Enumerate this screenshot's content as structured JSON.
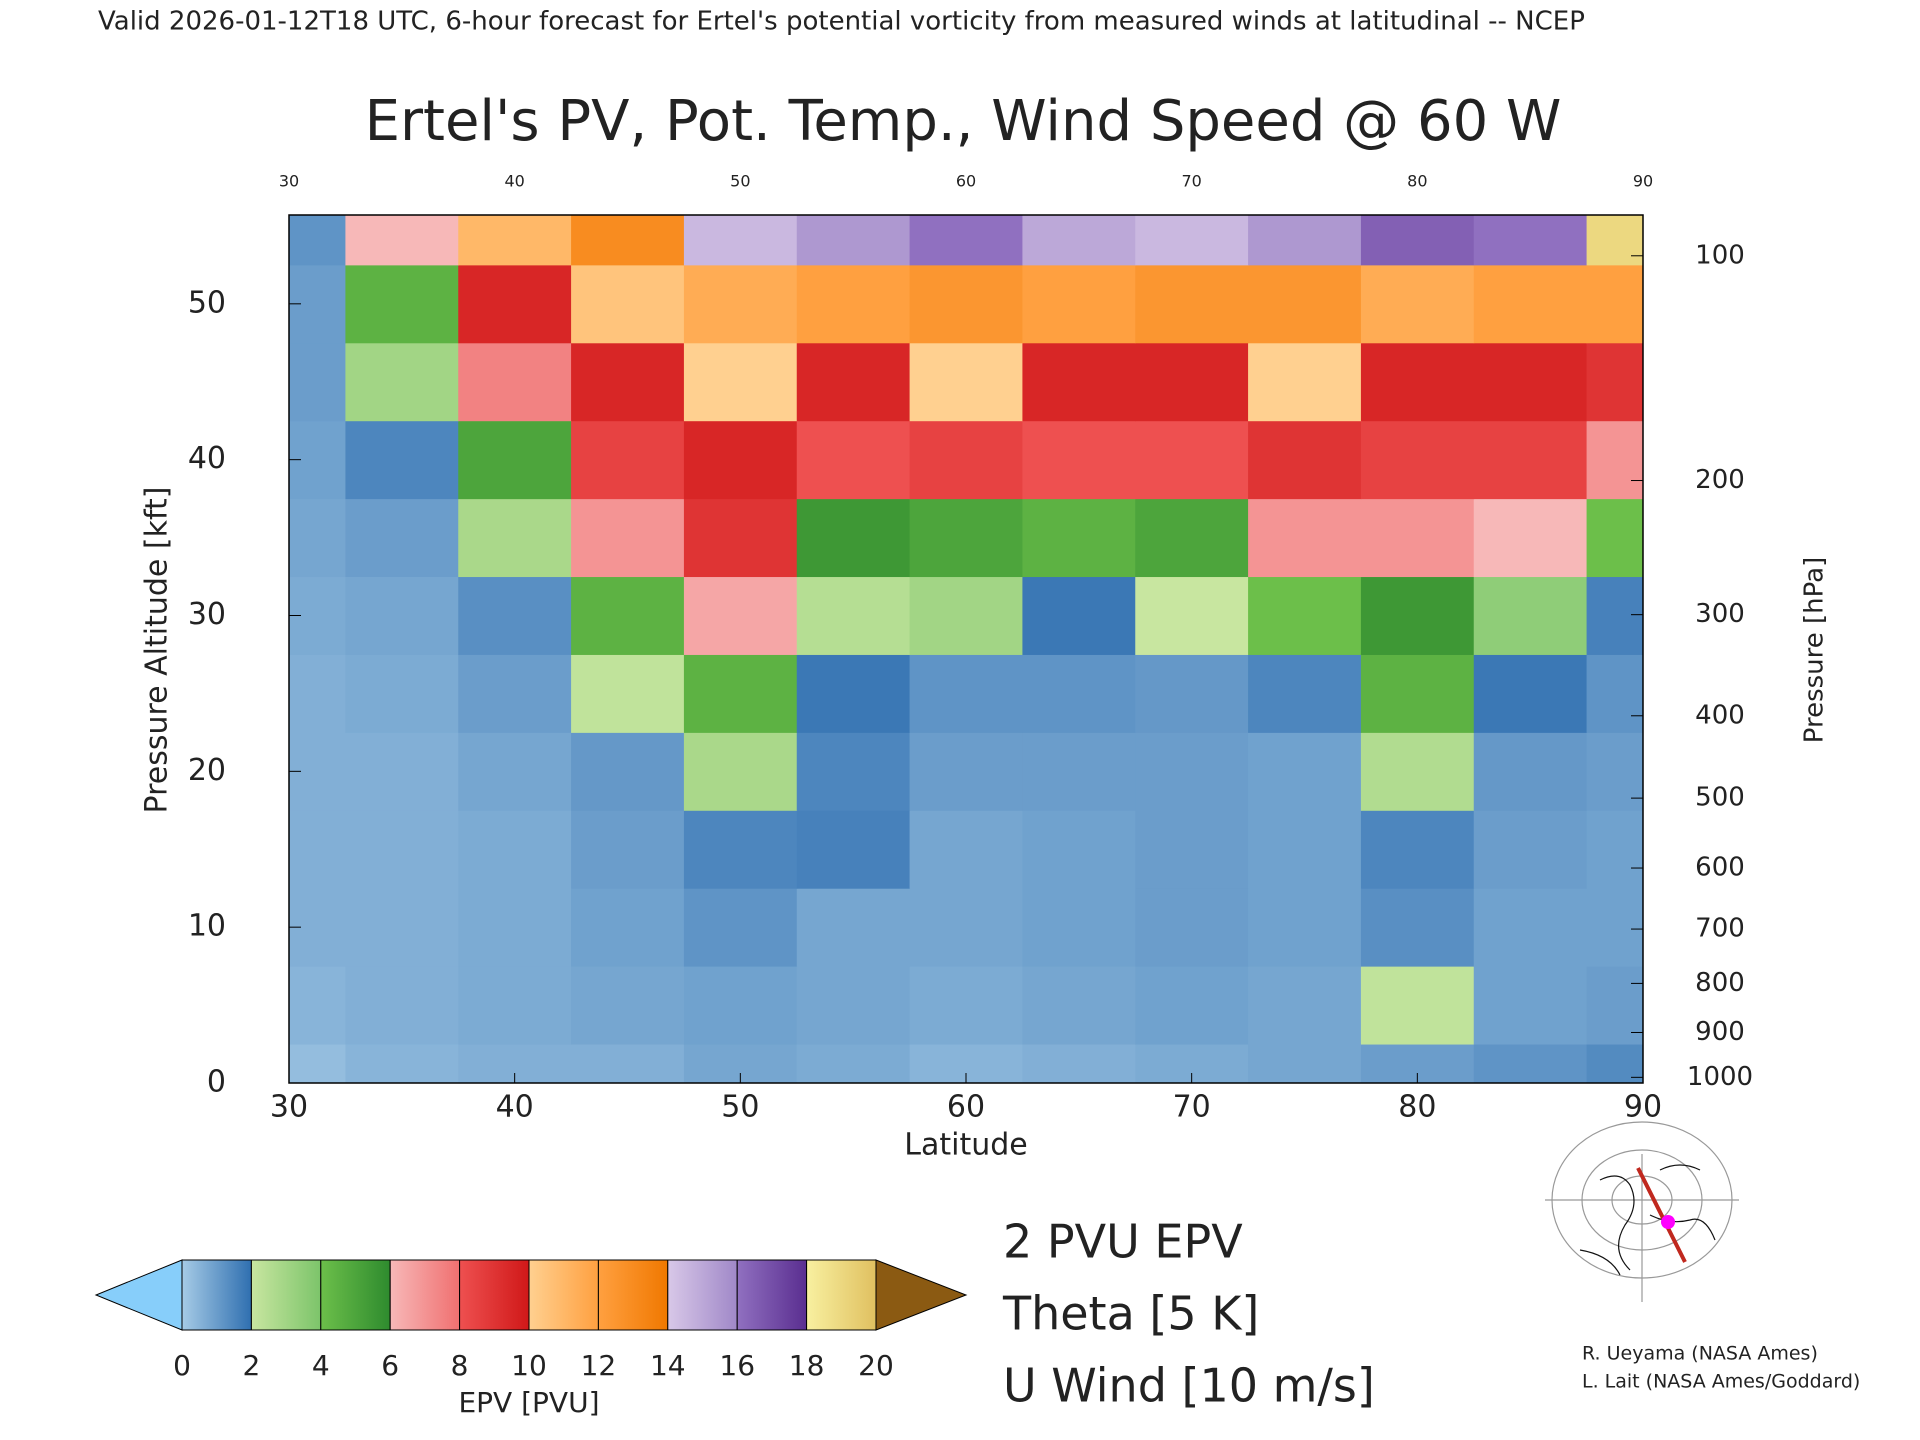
{
  "chart_data": {
    "type": "heatmap",
    "suptitle": "Valid 2026-01-12T18 UTC, 6-hour forecast for Ertel's potential vorticity from measured winds at latitudinal -- NCEP",
    "title": "Ertel's PV, Pot. Temp., Wind Speed @ 60 W",
    "x_label": "Latitude",
    "y_label": "Pressure Altitude [kft]",
    "y2_label": "Pressure [hPa]",
    "x": [
      30,
      35,
      40,
      45,
      50,
      55,
      60,
      65,
      70,
      75,
      80,
      85,
      90
    ],
    "y": [
      0,
      5,
      10,
      15,
      20,
      25,
      30,
      35,
      40,
      45,
      50,
      55
    ],
    "values": [
      [
        0.3,
        0.5,
        0.6,
        0.6,
        0.8,
        0.7,
        0.5,
        0.6,
        0.7,
        0.8,
        1.0,
        1.2,
        1.4
      ],
      [
        0.5,
        0.6,
        0.7,
        0.8,
        0.9,
        0.8,
        0.7,
        0.8,
        0.9,
        0.8,
        2.2,
        0.9,
        1.0
      ],
      [
        0.6,
        0.6,
        0.7,
        0.9,
        1.2,
        0.8,
        0.8,
        0.9,
        1.0,
        0.9,
        1.3,
        0.9,
        0.9
      ],
      [
        0.6,
        0.6,
        0.7,
        1.0,
        1.5,
        1.6,
        0.8,
        0.9,
        1.0,
        0.9,
        1.5,
        1.0,
        0.9
      ],
      [
        0.6,
        0.6,
        0.8,
        1.1,
        2.8,
        1.5,
        1.0,
        1.0,
        1.0,
        0.9,
        2.6,
        1.1,
        1.0
      ],
      [
        0.6,
        0.7,
        1.0,
        2.2,
        4.5,
        1.8,
        1.2,
        1.2,
        1.1,
        1.5,
        4.5,
        1.8,
        1.2
      ],
      [
        0.7,
        0.8,
        1.3,
        4.5,
        6.5,
        2.5,
        3.0,
        1.8,
        2.0,
        4.0,
        5.5,
        3.5,
        1.6
      ],
      [
        0.8,
        1.0,
        2.8,
        7.0,
        9.0,
        5.5,
        5.0,
        4.5,
        5.0,
        7.0,
        7.0,
        6.0,
        4.0
      ],
      [
        0.9,
        1.5,
        5.0,
        8.5,
        9.5,
        8.0,
        8.5,
        8.0,
        8.0,
        9.0,
        8.5,
        8.5,
        7.0
      ],
      [
        1.0,
        3.0,
        7.5,
        9.5,
        10.0,
        9.5,
        10.0,
        9.5,
        9.5,
        10.0,
        9.5,
        9.5,
        9.0
      ],
      [
        1.0,
        4.5,
        9.5,
        10.5,
        11.5,
        12.0,
        12.5,
        12.0,
        12.5,
        12.5,
        11.5,
        12.0,
        12.0
      ],
      [
        1.2,
        6.0,
        11.0,
        13.0,
        14.5,
        15.5,
        16.0,
        15.0,
        14.5,
        15.5,
        16.5,
        16.0,
        19.0
      ]
    ],
    "xlim": [
      30,
      90
    ],
    "xticks": [
      30,
      40,
      50,
      60,
      70,
      80,
      90
    ],
    "ylim": [
      0,
      55.7
    ],
    "yticks": [
      0,
      10,
      20,
      30,
      40,
      50
    ],
    "y2ticks": [
      100,
      200,
      300,
      400,
      500,
      600,
      700,
      800,
      900,
      1000
    ],
    "y2scale": "pressure-altitude",
    "colorbar": {
      "label": "EPV [PVU]",
      "ticks": [
        0,
        2,
        4,
        6,
        8,
        10,
        12,
        14,
        16,
        18,
        20
      ],
      "colors": [
        [
          "#a6cbe6",
          "#2f6fb0"
        ],
        [
          "#c8e6a0",
          "#7cc46a"
        ],
        [
          "#6cbf4a",
          "#2e8b2e"
        ],
        [
          "#f7b8b8",
          "#f07070"
        ],
        [
          "#ee5050",
          "#d01818"
        ],
        [
          "#ffd090",
          "#ffa040"
        ],
        [
          "#ffa040",
          "#f07800"
        ],
        [
          "#d8c8e8",
          "#a088c8"
        ],
        [
          "#9070c0",
          "#5a2e90"
        ],
        [
          "#f8f0a0",
          "#e0c060"
        ]
      ],
      "under_color": "#87cefa",
      "over_color": "#8b5a12"
    },
    "legend": [
      {
        "label": "2 PVU EPV",
        "color": "#ff00ff"
      },
      {
        "label": "Theta [5 K]",
        "color": "#aaaaaa"
      },
      {
        "label": "U Wind [10 m/s]",
        "color": "#000000"
      }
    ],
    "credits": [
      "R. Ueyama (NASA Ames)",
      "L. Lait (NASA Ames/Goddard)"
    ]
  }
}
